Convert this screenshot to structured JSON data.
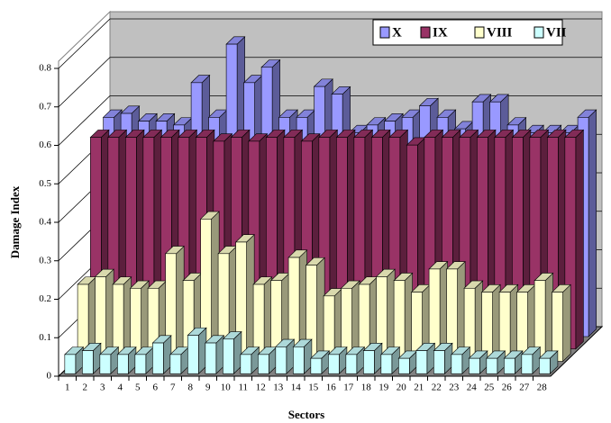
{
  "chart_data": {
    "type": "bar3d",
    "x_label": "Sectors",
    "y_label": "Damage Index",
    "categories": [
      "1",
      "2",
      "3",
      "4",
      "5",
      "6",
      "7",
      "8",
      "9",
      "10",
      "11",
      "12",
      "13",
      "14",
      "15",
      "16",
      "17",
      "18",
      "19",
      "20",
      "21",
      "22",
      "23",
      "24",
      "25",
      "26",
      "27",
      "28"
    ],
    "ylim": [
      0,
      0.8
    ],
    "yticks": [
      0,
      0.1,
      0.2,
      0.3,
      0.4,
      0.5,
      0.6,
      0.7,
      0.8
    ],
    "grid": true,
    "series": [
      {
        "name": "X",
        "color": "#9999ff",
        "values": [
          0.57,
          0.58,
          0.56,
          0.56,
          0.55,
          0.66,
          0.57,
          0.76,
          0.66,
          0.7,
          0.57,
          0.57,
          0.65,
          0.63,
          0.53,
          0.55,
          0.56,
          0.57,
          0.6,
          0.57,
          0.54,
          0.61,
          0.61,
          0.55,
          0.53,
          0.53,
          0.53,
          0.57
        ]
      },
      {
        "name": "IX",
        "color": "#993366",
        "values": [
          0.55,
          0.55,
          0.55,
          0.55,
          0.55,
          0.55,
          0.55,
          0.54,
          0.55,
          0.54,
          0.55,
          0.55,
          0.54,
          0.55,
          0.55,
          0.55,
          0.55,
          0.55,
          0.53,
          0.55,
          0.55,
          0.55,
          0.55,
          0.55,
          0.55,
          0.55,
          0.55,
          0.55
        ]
      },
      {
        "name": "VIII",
        "color": "#ffffcc",
        "values": [
          0.2,
          0.22,
          0.2,
          0.19,
          0.19,
          0.28,
          0.21,
          0.37,
          0.28,
          0.31,
          0.2,
          0.21,
          0.27,
          0.25,
          0.17,
          0.19,
          0.2,
          0.22,
          0.21,
          0.18,
          0.24,
          0.24,
          0.19,
          0.18,
          0.18,
          0.18,
          0.21,
          0.18
        ]
      },
      {
        "name": "VII",
        "color": "#ccffff",
        "values": [
          0.05,
          0.06,
          0.05,
          0.05,
          0.05,
          0.08,
          0.05,
          0.1,
          0.08,
          0.09,
          0.05,
          0.05,
          0.07,
          0.07,
          0.04,
          0.05,
          0.05,
          0.06,
          0.05,
          0.04,
          0.06,
          0.06,
          0.05,
          0.04,
          0.04,
          0.04,
          0.05,
          0.04
        ]
      }
    ]
  }
}
